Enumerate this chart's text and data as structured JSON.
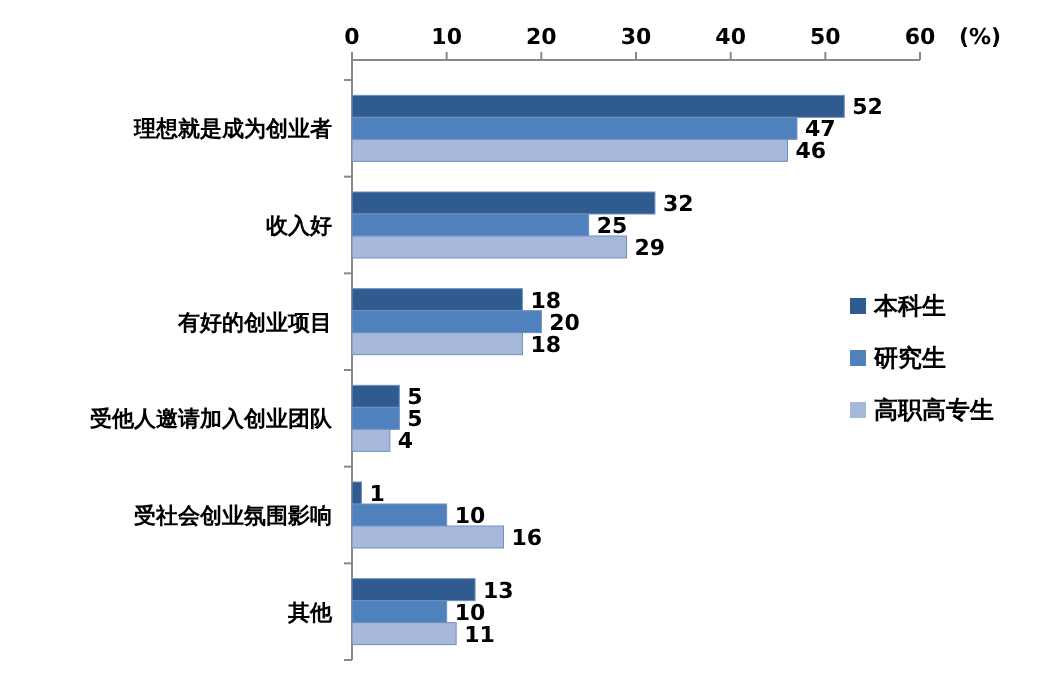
{
  "chart_data": {
    "type": "bar",
    "orientation": "horizontal",
    "xlabel": "(%)",
    "categories": [
      "理想就是成为创业者",
      "收入好",
      "有好的创业项目",
      "受他人邀请加入创业团队",
      "受社会创业氛围影响",
      "其他"
    ],
    "series": [
      {
        "name": "本科生",
        "color": "#2f5b8f",
        "values": [
          52,
          32,
          18,
          5,
          1,
          13
        ]
      },
      {
        "name": "研究生",
        "color": "#4f81bd",
        "values": [
          47,
          25,
          20,
          5,
          10,
          10
        ]
      },
      {
        "name": "高职高专生",
        "color": "#a7b9db",
        "values": [
          46,
          29,
          18,
          4,
          16,
          11
        ]
      }
    ],
    "xlim": [
      0,
      60
    ],
    "xticks": [
      0,
      10,
      20,
      30,
      40,
      50,
      60
    ],
    "data_labels": true,
    "legend": "right"
  }
}
